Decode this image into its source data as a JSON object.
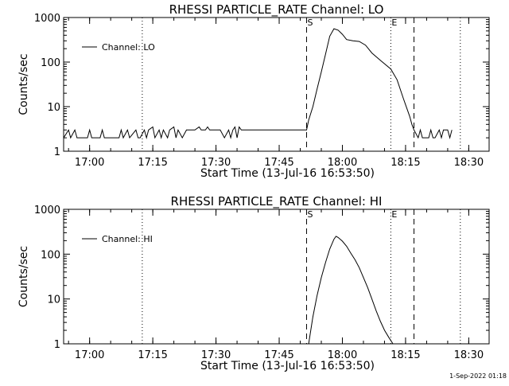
{
  "footer": {
    "timestamp": "1-Sep-2022 01:18"
  },
  "chart_data": [
    {
      "type": "line",
      "title": "RHESSI PARTICLE_RATE Channel: LO",
      "xlabel": "Start Time (13-Jul-16 16:53:50)",
      "ylabel": "Counts/sec",
      "yscale": "log",
      "ylim": [
        1,
        1000
      ],
      "xlim": [
        "16:53:50",
        "18:34:50"
      ],
      "x_ticks": [
        "17:00",
        "17:15",
        "17:30",
        "17:45",
        "18:00",
        "18:15",
        "18:30"
      ],
      "y_ticks": [
        "1",
        "10",
        "100",
        "1000"
      ],
      "legend": {
        "position": "top-left",
        "entries": [
          "Channel: LO"
        ]
      },
      "markers": [
        {
          "time": "17:51:30",
          "label": "S",
          "style": "dashed"
        },
        {
          "time": "18:11:30",
          "label": "E",
          "style": "dotted"
        },
        {
          "time": "18:17:00",
          "label": "",
          "style": "dashed"
        }
      ],
      "gridlines": [
        "17:12:30",
        "18:28:00"
      ],
      "series": [
        {
          "name": "Channel: LO",
          "points": [
            [
              "16:53:50",
              2
            ],
            [
              "16:55:00",
              3
            ],
            [
              "16:55:30",
              2
            ],
            [
              "16:56:30",
              3
            ],
            [
              "16:57:00",
              2
            ],
            [
              "16:59:30",
              2
            ],
            [
              "17:00:00",
              3
            ],
            [
              "17:00:30",
              2
            ],
            [
              "17:02:30",
              2
            ],
            [
              "17:03:00",
              3
            ],
            [
              "17:03:30",
              2
            ],
            [
              "17:06:00",
              2
            ],
            [
              "17:07:00",
              2
            ],
            [
              "17:07:30",
              3
            ],
            [
              "17:08:00",
              2
            ],
            [
              "17:09:00",
              3
            ],
            [
              "17:09:30",
              2
            ],
            [
              "17:11:00",
              3
            ],
            [
              "17:11:30",
              2
            ],
            [
              "17:12:00",
              2
            ],
            [
              "17:13:00",
              3
            ],
            [
              "17:13:30",
              2
            ],
            [
              "17:14:00",
              3
            ],
            [
              "17:15:00",
              3.5
            ],
            [
              "17:15:30",
              2
            ],
            [
              "17:16:30",
              3
            ],
            [
              "17:17:00",
              2
            ],
            [
              "17:17:30",
              3
            ],
            [
              "17:18:30",
              2
            ],
            [
              "17:19:00",
              3
            ],
            [
              "17:20:00",
              3.5
            ],
            [
              "17:20:30",
              2
            ],
            [
              "17:21:00",
              3
            ],
            [
              "17:22:00",
              2
            ],
            [
              "17:23:00",
              3
            ],
            [
              "17:25:00",
              3
            ],
            [
              "17:26:00",
              3.5
            ],
            [
              "17:26:30",
              3
            ],
            [
              "17:27:30",
              3
            ],
            [
              "17:28:00",
              3.5
            ],
            [
              "17:28:30",
              3
            ],
            [
              "17:31:00",
              3
            ],
            [
              "17:32:00",
              2
            ],
            [
              "17:33:00",
              3
            ],
            [
              "17:33:30",
              2
            ],
            [
              "17:34:00",
              3
            ],
            [
              "17:34:30",
              3.5
            ],
            [
              "17:35:00",
              2
            ],
            [
              "17:35:30",
              3.5
            ],
            [
              "17:36:00",
              3
            ],
            [
              "17:39:00",
              3
            ],
            [
              "17:43:00",
              3
            ],
            [
              "17:46:00",
              3
            ],
            [
              "17:48:00",
              3
            ],
            [
              "17:50:00",
              3
            ],
            [
              "17:51:30",
              3
            ],
            [
              "17:52:00",
              5
            ],
            [
              "17:53:00",
              10
            ],
            [
              "17:54:00",
              25
            ],
            [
              "17:55:00",
              60
            ],
            [
              "17:56:00",
              150
            ],
            [
              "17:57:00",
              380
            ],
            [
              "17:58:00",
              560
            ],
            [
              "17:59:00",
              520
            ],
            [
              "18:00:00",
              420
            ],
            [
              "18:01:00",
              320
            ],
            [
              "18:02:30",
              300
            ],
            [
              "18:04:00",
              290
            ],
            [
              "18:05:30",
              240
            ],
            [
              "18:07:00",
              160
            ],
            [
              "18:09:00",
              110
            ],
            [
              "18:11:30",
              70
            ],
            [
              "18:13:00",
              40
            ],
            [
              "18:14:30",
              15
            ],
            [
              "18:16:00",
              6
            ],
            [
              "18:16:30",
              4
            ],
            [
              "18:17:00",
              3
            ],
            [
              "18:18:00",
              2
            ],
            [
              "18:18:30",
              3
            ],
            [
              "18:19:00",
              2
            ],
            [
              "18:20:30",
              2
            ],
            [
              "18:21:00",
              3
            ],
            [
              "18:21:30",
              2
            ],
            [
              "18:22:00",
              2
            ],
            [
              "18:23:00",
              3
            ],
            [
              "18:23:30",
              2
            ],
            [
              "18:24:00",
              3
            ],
            [
              "18:25:00",
              3
            ],
            [
              "18:25:30",
              2
            ],
            [
              "18:26:00",
              3
            ]
          ]
        }
      ]
    },
    {
      "type": "line",
      "title": "RHESSI PARTICLE_RATE Channel: HI",
      "xlabel": "Start Time (13-Jul-16 16:53:50)",
      "ylabel": "Counts/sec",
      "yscale": "log",
      "ylim": [
        1,
        1000
      ],
      "xlim": [
        "16:53:50",
        "18:34:50"
      ],
      "x_ticks": [
        "17:00",
        "17:15",
        "17:30",
        "17:45",
        "18:00",
        "18:15",
        "18:30"
      ],
      "y_ticks": [
        "1",
        "10",
        "100",
        "1000"
      ],
      "legend": {
        "position": "top-left",
        "entries": [
          "Channel: HI"
        ]
      },
      "markers": [
        {
          "time": "17:51:30",
          "label": "S",
          "style": "dashed"
        },
        {
          "time": "18:11:30",
          "label": "E",
          "style": "dotted"
        },
        {
          "time": "18:17:00",
          "label": "",
          "style": "dashed"
        }
      ],
      "gridlines": [
        "17:12:30",
        "18:28:00"
      ],
      "series": [
        {
          "name": "Channel: HI",
          "points": [
            [
              "17:52:00",
              1
            ],
            [
              "17:53:00",
              4
            ],
            [
              "17:54:00",
              12
            ],
            [
              "17:55:00",
              30
            ],
            [
              "17:56:00",
              65
            ],
            [
              "17:57:00",
              130
            ],
            [
              "17:58:00",
              215
            ],
            [
              "17:58:30",
              250
            ],
            [
              "17:59:00",
              235
            ],
            [
              "18:00:00",
              195
            ],
            [
              "18:01:00",
              150
            ],
            [
              "18:02:00",
              105
            ],
            [
              "18:03:00",
              75
            ],
            [
              "18:04:00",
              50
            ],
            [
              "18:05:00",
              30
            ],
            [
              "18:06:00",
              18
            ],
            [
              "18:07:00",
              10
            ],
            [
              "18:08:00",
              5.5
            ],
            [
              "18:09:00",
              3.2
            ],
            [
              "18:10:00",
              2
            ],
            [
              "18:11:00",
              1.4
            ],
            [
              "18:12:00",
              1
            ]
          ]
        }
      ]
    }
  ]
}
